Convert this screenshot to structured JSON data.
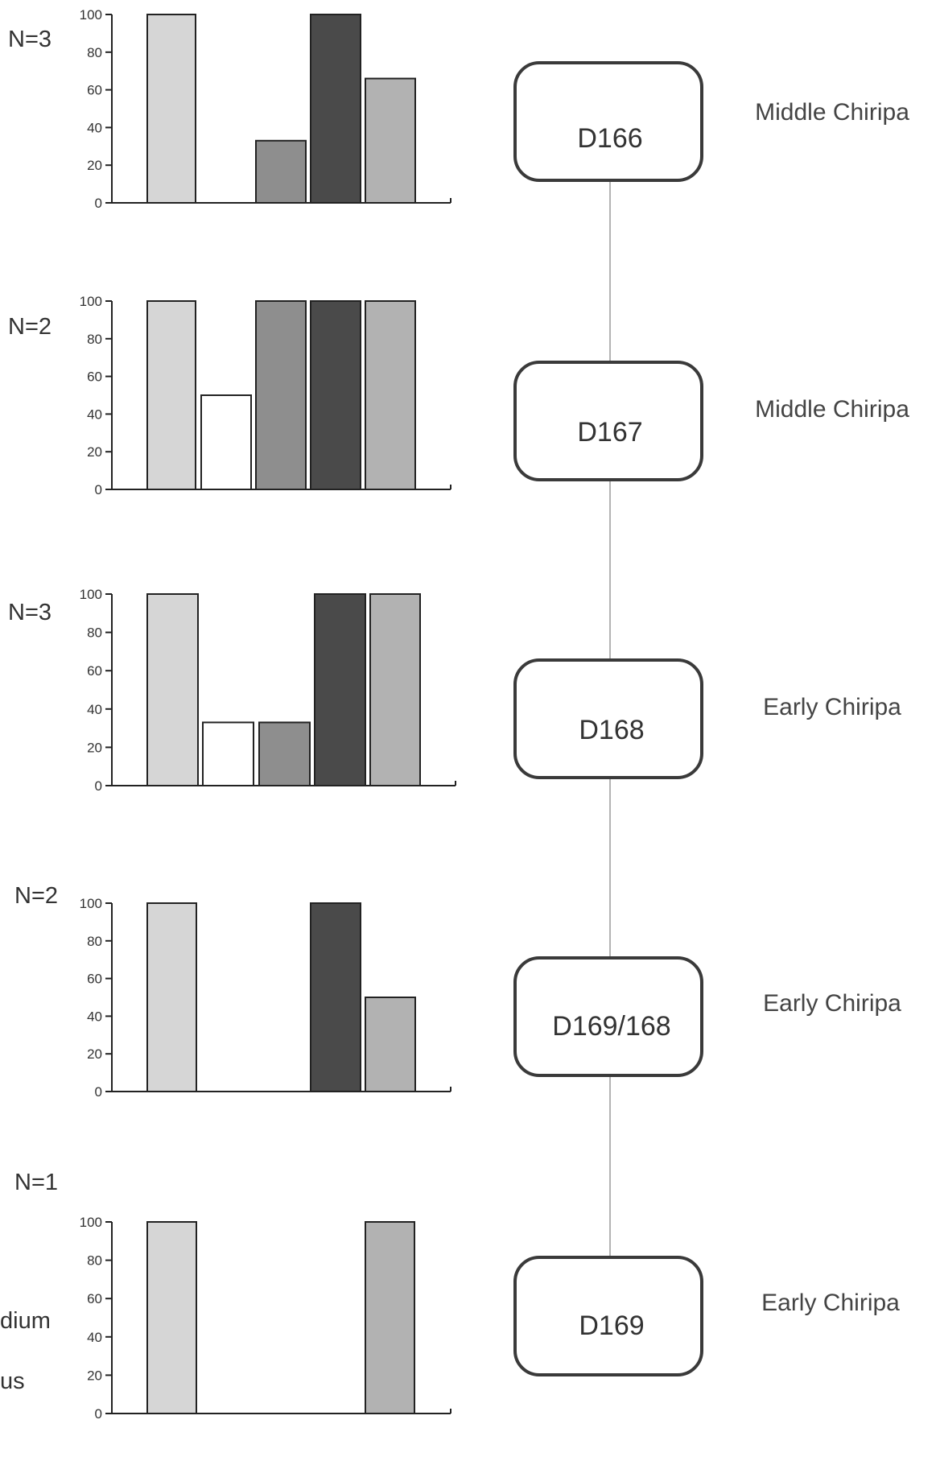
{
  "colors": {
    "category_fills": [
      "#d6d6d6",
      "#ffffff",
      "#8e8e8e",
      "#4a4a4a",
      "#b2b2b2"
    ],
    "axis": "#222222",
    "text": "#333333",
    "connector": "#9a9a9a"
  },
  "chart_data": [
    {
      "type": "bar",
      "n_label": "N=3",
      "yticks": [
        "0",
        "20",
        "40",
        "60",
        "80",
        "100"
      ],
      "ylim": [
        0,
        100
      ],
      "series": [
        {
          "values": [
            100,
            0,
            33,
            100,
            66
          ]
        }
      ]
    },
    {
      "type": "bar",
      "n_label": "N=2",
      "yticks": [
        "0",
        "20",
        "40",
        "60",
        "80",
        "100"
      ],
      "ylim": [
        0,
        100
      ],
      "series": [
        {
          "values": [
            100,
            50,
            100,
            100,
            100
          ]
        }
      ]
    },
    {
      "type": "bar",
      "n_label": "N=3",
      "yticks": [
        "0",
        "20",
        "40",
        "60",
        "80",
        "100"
      ],
      "ylim": [
        0,
        100
      ],
      "series": [
        {
          "values": [
            100,
            33,
            33,
            100,
            100
          ]
        }
      ]
    },
    {
      "type": "bar",
      "n_label": "N=2",
      "yticks": [
        "0",
        "20",
        "40",
        "60",
        "80",
        "100"
      ],
      "ylim": [
        0,
        100
      ],
      "series": [
        {
          "values": [
            100,
            0,
            0,
            100,
            50
          ]
        }
      ]
    },
    {
      "type": "bar",
      "n_label": "N=1",
      "yticks": [
        "0",
        "20",
        "40",
        "60",
        "80",
        "100"
      ],
      "ylim": [
        0,
        100
      ],
      "series": [
        {
          "values": [
            100,
            0,
            0,
            0,
            100
          ]
        }
      ]
    }
  ],
  "strata": [
    {
      "label": "D166",
      "phase": "Middle Chiripa"
    },
    {
      "label": "D167",
      "phase": "Middle Chiripa"
    },
    {
      "label": "D168",
      "phase": "Early Chiripa"
    },
    {
      "label": "D169/168",
      "phase": "Early Chiripa"
    },
    {
      "label": "D169",
      "phase": "Early Chiripa"
    }
  ],
  "cut_off_labels": [
    "dium",
    "us"
  ]
}
